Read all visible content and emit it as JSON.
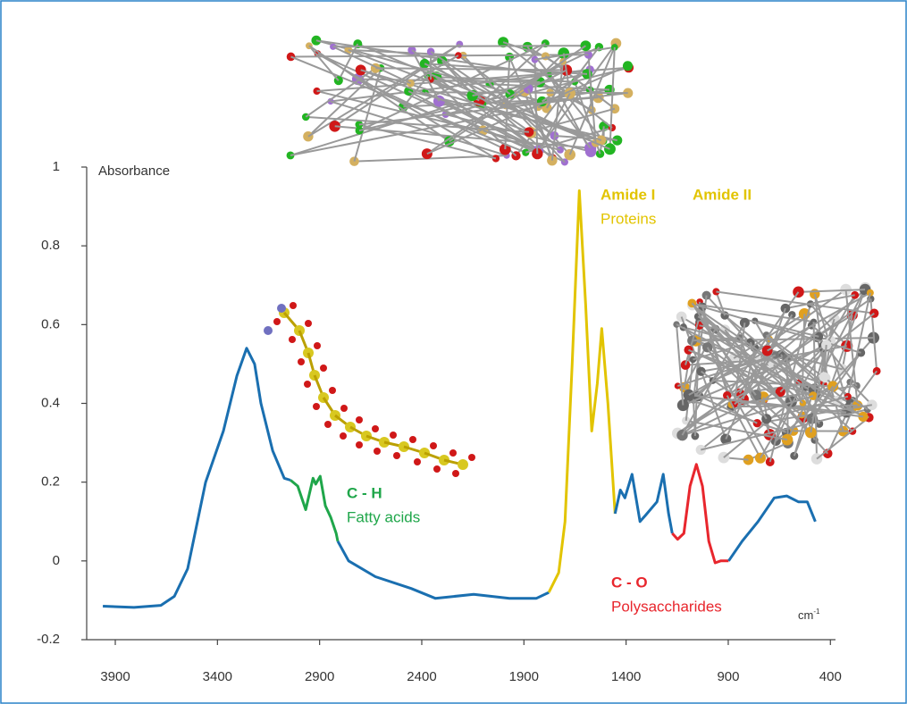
{
  "chart_data": {
    "type": "line",
    "y_label": "Absorbance",
    "x_label": {
      "base": "cm",
      "superscript": "-1"
    },
    "xlim": [
      4040,
      375
    ],
    "ylim": [
      -0.2,
      1
    ],
    "xticks": [
      3900,
      3400,
      2900,
      2400,
      1900,
      1400,
      900,
      400
    ],
    "yticks": [
      -0.2,
      0,
      0.2,
      0.4,
      0.6,
      0.8,
      1
    ],
    "series": [
      {
        "color": "#1a6fb0",
        "x": [
          3961,
          3808,
          3677,
          3611,
          3546,
          3458,
          3371,
          3305,
          3257,
          3218,
          3187,
          3130,
          3073,
          3042
        ],
        "values": [
          -0.115,
          -0.118,
          -0.113,
          -0.09,
          -0.02,
          0.2,
          0.33,
          0.47,
          0.54,
          0.5,
          0.4,
          0.28,
          0.21,
          0.205
        ]
      },
      {
        "color": "#1fa64a",
        "x": [
          3042,
          3007,
          2968,
          2932,
          2919,
          2897,
          2872,
          2845,
          2819,
          2811
        ],
        "values": [
          0.205,
          0.19,
          0.13,
          0.21,
          0.195,
          0.215,
          0.14,
          0.11,
          0.07,
          0.05
        ]
      },
      {
        "color": "#1a6fb0",
        "x": [
          2811,
          2758,
          2627,
          2452,
          2334,
          2146,
          1971,
          1839,
          1778
        ],
        "values": [
          0.05,
          0.0,
          -0.04,
          -0.07,
          -0.095,
          -0.085,
          -0.095,
          -0.095,
          -0.08
        ]
      },
      {
        "color": "#e2c400",
        "x": [
          1778,
          1730,
          1699,
          1664,
          1629,
          1598,
          1568,
          1541,
          1519,
          1489,
          1454
        ],
        "values": [
          -0.08,
          -0.03,
          0.1,
          0.5,
          0.94,
          0.65,
          0.33,
          0.45,
          0.59,
          0.4,
          0.12
        ]
      },
      {
        "color": "#1a6fb0",
        "x": [
          1454,
          1428,
          1406,
          1371,
          1332,
          1306,
          1249,
          1218,
          1192,
          1174
        ],
        "values": [
          0.12,
          0.18,
          0.16,
          0.22,
          0.1,
          0.115,
          0.15,
          0.22,
          0.12,
          0.07
        ]
      },
      {
        "color": "#e8262d",
        "x": [
          1174,
          1148,
          1117,
          1087,
          1056,
          1026,
          995,
          964,
          937,
          898
        ],
        "values": [
          0.07,
          0.055,
          0.07,
          0.19,
          0.245,
          0.19,
          0.05,
          -0.005,
          0.0,
          0.0
        ]
      },
      {
        "color": "#1a6fb0",
        "x": [
          898,
          832,
          754,
          675,
          614,
          557,
          513,
          474
        ],
        "values": [
          0.0,
          0.05,
          0.1,
          0.16,
          0.165,
          0.15,
          0.15,
          0.1
        ]
      }
    ],
    "annotations": [
      {
        "title": "C - H",
        "text": "Fatty acids",
        "color": "#1fa64a"
      },
      {
        "title": "Amide I",
        "color": "#e2c400"
      },
      {
        "title": "Amide II",
        "text": "Proteins",
        "color": "#e2c400"
      },
      {
        "title": "C - O",
        "text": "Polysaccharides",
        "color": "#e8262d"
      }
    ]
  }
}
